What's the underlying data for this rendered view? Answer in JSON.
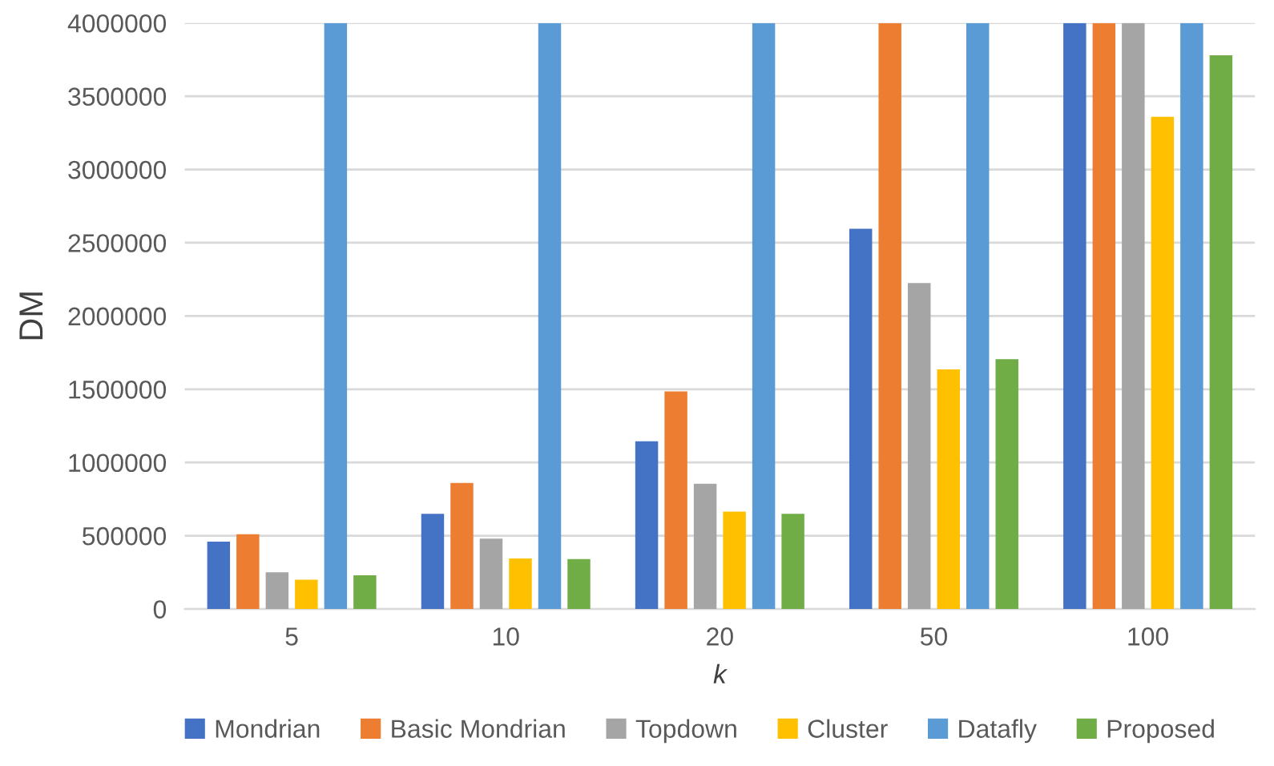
{
  "chart_data": {
    "type": "bar",
    "xlabel": "k",
    "ylabel": "DM",
    "categories": [
      "5",
      "10",
      "20",
      "50",
      "100"
    ],
    "series": [
      {
        "name": "Mondrian",
        "color": "#4472c4",
        "values": [
          460000,
          650000,
          1145000,
          2595000,
          4000000
        ]
      },
      {
        "name": "Basic Mondrian",
        "color": "#ed7d31",
        "values": [
          510000,
          860000,
          1485000,
          4000000,
          4000000
        ]
      },
      {
        "name": "Topdown",
        "color": "#a5a5a5",
        "values": [
          250000,
          480000,
          855000,
          2225000,
          4000000
        ]
      },
      {
        "name": "Cluster",
        "color": "#ffc000",
        "values": [
          200000,
          345000,
          665000,
          1635000,
          3360000
        ]
      },
      {
        "name": "Datafly",
        "color": "#5b9bd5",
        "values": [
          4000000,
          4000000,
          4000000,
          4000000,
          4000000
        ]
      },
      {
        "name": "Proposed",
        "color": "#70ad47",
        "values": [
          230000,
          340000,
          650000,
          1705000,
          3780000
        ]
      }
    ],
    "ylim": [
      0,
      4000000
    ],
    "yticks": [
      0,
      500000,
      1000000,
      1500000,
      2000000,
      2500000,
      3000000,
      3500000,
      4000000
    ],
    "grid": "y",
    "legend": "bottom"
  }
}
